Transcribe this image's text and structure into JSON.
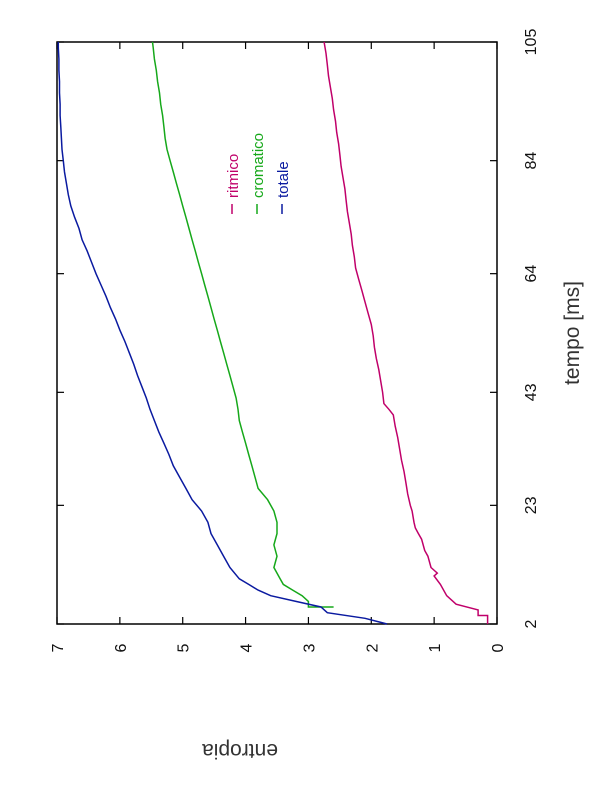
{
  "chart_data": {
    "type": "line",
    "orientation": "rotated-90-ccw",
    "xlabel": "tempo [ms]",
    "ylabel": "entropia",
    "xlim": [
      2,
      105
    ],
    "ylim": [
      0,
      7
    ],
    "x_ticks": [
      2,
      23,
      43,
      64,
      84,
      105
    ],
    "y_ticks": [
      0,
      1,
      2,
      3,
      4,
      5,
      6,
      7
    ],
    "legend_position": "top-center",
    "series": [
      {
        "name": "ritmico",
        "color": "#c0006a",
        "points": [
          [
            2,
            0.15
          ],
          [
            3.5,
            0.15
          ],
          [
            3.5,
            0.3
          ],
          [
            4.5,
            0.3
          ],
          [
            5.5,
            0.65
          ],
          [
            7,
            0.8
          ],
          [
            9,
            0.9
          ],
          [
            10.5,
            1.0
          ],
          [
            11,
            0.95
          ],
          [
            12,
            1.05
          ],
          [
            14,
            1.1
          ],
          [
            15,
            1.15
          ],
          [
            17,
            1.2
          ],
          [
            18,
            1.25
          ],
          [
            19,
            1.3
          ],
          [
            20,
            1.32
          ],
          [
            22,
            1.35
          ],
          [
            23,
            1.38
          ],
          [
            25,
            1.42
          ],
          [
            27,
            1.45
          ],
          [
            29,
            1.48
          ],
          [
            31,
            1.52
          ],
          [
            33,
            1.55
          ],
          [
            35,
            1.58
          ],
          [
            37,
            1.62
          ],
          [
            39,
            1.65
          ],
          [
            40,
            1.72
          ],
          [
            41,
            1.8
          ],
          [
            43,
            1.82
          ],
          [
            45,
            1.85
          ],
          [
            47,
            1.88
          ],
          [
            49,
            1.92
          ],
          [
            51,
            1.95
          ],
          [
            53,
            1.97
          ],
          [
            55,
            2.0
          ],
          [
            57,
            2.05
          ],
          [
            59,
            2.1
          ],
          [
            61,
            2.15
          ],
          [
            63,
            2.2
          ],
          [
            65,
            2.25
          ],
          [
            67,
            2.27
          ],
          [
            69,
            2.3
          ],
          [
            71,
            2.32
          ],
          [
            73,
            2.35
          ],
          [
            75,
            2.38
          ],
          [
            77,
            2.4
          ],
          [
            79,
            2.42
          ],
          [
            81,
            2.45
          ],
          [
            83,
            2.48
          ],
          [
            85,
            2.5
          ],
          [
            87,
            2.52
          ],
          [
            89,
            2.55
          ],
          [
            91,
            2.57
          ],
          [
            93,
            2.6
          ],
          [
            95,
            2.62
          ],
          [
            97,
            2.65
          ],
          [
            99,
            2.68
          ],
          [
            101,
            2.7
          ],
          [
            103,
            2.72
          ],
          [
            105,
            2.75
          ]
        ]
      },
      {
        "name": "cromatico",
        "color": "#16a81a",
        "points": [
          [
            5,
            2.6
          ],
          [
            5,
            3.0
          ],
          [
            6,
            3.0
          ],
          [
            7,
            3.1
          ],
          [
            8,
            3.25
          ],
          [
            9,
            3.4
          ],
          [
            10,
            3.45
          ],
          [
            12,
            3.55
          ],
          [
            14,
            3.5
          ],
          [
            16,
            3.55
          ],
          [
            18,
            3.5
          ],
          [
            20,
            3.5
          ],
          [
            22,
            3.55
          ],
          [
            24,
            3.65
          ],
          [
            26,
            3.8
          ],
          [
            28,
            3.85
          ],
          [
            30,
            3.9
          ],
          [
            32,
            3.95
          ],
          [
            34,
            4.0
          ],
          [
            36,
            4.05
          ],
          [
            38,
            4.1
          ],
          [
            40,
            4.12
          ],
          [
            42,
            4.15
          ],
          [
            44,
            4.2
          ],
          [
            46,
            4.25
          ],
          [
            48,
            4.3
          ],
          [
            50,
            4.35
          ],
          [
            52,
            4.4
          ],
          [
            54,
            4.45
          ],
          [
            56,
            4.5
          ],
          [
            58,
            4.55
          ],
          [
            60,
            4.6
          ],
          [
            62,
            4.65
          ],
          [
            64,
            4.7
          ],
          [
            66,
            4.75
          ],
          [
            68,
            4.8
          ],
          [
            70,
            4.85
          ],
          [
            72,
            4.9
          ],
          [
            74,
            4.95
          ],
          [
            76,
            5.0
          ],
          [
            78,
            5.05
          ],
          [
            80,
            5.1
          ],
          [
            82,
            5.15
          ],
          [
            84,
            5.2
          ],
          [
            86,
            5.25
          ],
          [
            88,
            5.28
          ],
          [
            90,
            5.3
          ],
          [
            92,
            5.32
          ],
          [
            94,
            5.35
          ],
          [
            96,
            5.37
          ],
          [
            98,
            5.4
          ],
          [
            100,
            5.42
          ],
          [
            102,
            5.45
          ],
          [
            104,
            5.47
          ],
          [
            105,
            5.48
          ]
        ]
      },
      {
        "name": "totale",
        "color": "#0a1aa0",
        "points": [
          [
            2,
            1.75
          ],
          [
            3,
            2.1
          ],
          [
            4,
            2.7
          ],
          [
            5,
            2.8
          ],
          [
            6,
            3.2
          ],
          [
            7,
            3.6
          ],
          [
            8,
            3.8
          ],
          [
            9,
            3.95
          ],
          [
            10,
            4.1
          ],
          [
            12,
            4.25
          ],
          [
            14,
            4.35
          ],
          [
            16,
            4.45
          ],
          [
            18,
            4.55
          ],
          [
            20,
            4.6
          ],
          [
            22,
            4.7
          ],
          [
            24,
            4.85
          ],
          [
            26,
            4.95
          ],
          [
            28,
            5.05
          ],
          [
            30,
            5.15
          ],
          [
            32,
            5.22
          ],
          [
            34,
            5.3
          ],
          [
            36,
            5.38
          ],
          [
            38,
            5.45
          ],
          [
            40,
            5.52
          ],
          [
            42,
            5.58
          ],
          [
            44,
            5.65
          ],
          [
            46,
            5.72
          ],
          [
            48,
            5.78
          ],
          [
            50,
            5.85
          ],
          [
            52,
            5.92
          ],
          [
            54,
            6.0
          ],
          [
            56,
            6.07
          ],
          [
            58,
            6.15
          ],
          [
            60,
            6.22
          ],
          [
            62,
            6.3
          ],
          [
            64,
            6.38
          ],
          [
            66,
            6.45
          ],
          [
            68,
            6.52
          ],
          [
            70,
            6.6
          ],
          [
            72,
            6.65
          ],
          [
            74,
            6.72
          ],
          [
            76,
            6.78
          ],
          [
            78,
            6.82
          ],
          [
            80,
            6.85
          ],
          [
            82,
            6.88
          ],
          [
            84,
            6.9
          ],
          [
            86,
            6.92
          ],
          [
            88,
            6.93
          ],
          [
            90,
            6.94
          ],
          [
            92,
            6.95
          ],
          [
            94,
            6.95
          ],
          [
            96,
            6.96
          ],
          [
            98,
            6.96
          ],
          [
            100,
            6.97
          ],
          [
            102,
            6.97
          ],
          [
            104,
            6.98
          ],
          [
            105,
            6.98
          ]
        ]
      }
    ]
  }
}
